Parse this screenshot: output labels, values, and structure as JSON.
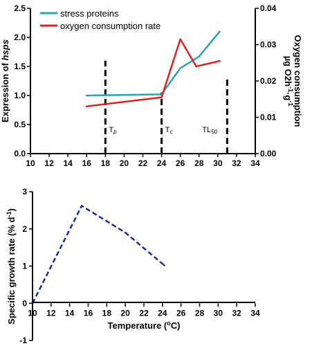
{
  "colors": {
    "stress": "#2aa3b3",
    "oxygen": "#e02020",
    "growth": "#1a2a9c",
    "axis": "#000000"
  },
  "chart_data": [
    {
      "type": "line",
      "x_ticks": [
        "10",
        "12",
        "14",
        "16",
        "18",
        "20",
        "22",
        "24",
        "26",
        "28",
        "30",
        "32",
        "34"
      ],
      "xlim": [
        10,
        34
      ],
      "ylim_left": [
        0,
        2.5
      ],
      "ylim_right": [
        0,
        0.04
      ],
      "y_ticks_left": [
        "0.0",
        "0.5",
        "1.0",
        "1.5",
        "2.0",
        "2.5"
      ],
      "y_ticks_right": [
        "0.00",
        "0.01",
        "0.02",
        "0.03",
        "0.04"
      ],
      "ylabel_left": {
        "main": "Expression of ",
        "italic": "hsps"
      },
      "ylabel_right_1": "Oxygen consumption",
      "ylabel_right_2": {
        "a": "µg O2h",
        "b": "-1",
        "c": "·g",
        "d": "-1"
      },
      "legend_position": "top-left",
      "series": [
        {
          "name": "stress proteins",
          "axis": "left",
          "x": [
            16,
            24,
            26,
            28,
            30.2
          ],
          "y": [
            1.0,
            1.02,
            1.47,
            1.67,
            2.1
          ]
        },
        {
          "name": "oxygen consumption rate",
          "axis": "right",
          "x": [
            16,
            24,
            26,
            27.7,
            30.2
          ],
          "y": [
            0.013,
            0.0155,
            0.0315,
            0.024,
            0.0255
          ]
        }
      ],
      "thresholds": [
        {
          "x": 18,
          "y_top": 1.6,
          "label_main": "T",
          "label_sub": "p"
        },
        {
          "x": 24,
          "y_top": 1.05,
          "label_main": "T",
          "label_sub": "c"
        },
        {
          "x": 31,
          "y_top": 1.3,
          "label_main": "TL",
          "label_sub": "50"
        }
      ]
    },
    {
      "type": "line",
      "x_ticks": [
        "10",
        "12",
        "14",
        "16",
        "18",
        "20",
        "22",
        "24",
        "26",
        "28",
        "30",
        "32",
        "34"
      ],
      "xlim": [
        10,
        34
      ],
      "ylim": [
        -1,
        3
      ],
      "y_ticks": [
        "-1",
        "0",
        "1",
        "2",
        "3"
      ],
      "ylabel": {
        "a": "Specific growth rate (% d",
        "b": "-1",
        "c": ")"
      },
      "xlabel": {
        "a": "Temperature (",
        "b": "o",
        "c": "C)"
      },
      "series": [
        {
          "x": [
            10,
            15.3,
            20,
            24.2
          ],
          "y": [
            0,
            2.62,
            1.9,
            1.02
          ]
        }
      ]
    }
  ]
}
